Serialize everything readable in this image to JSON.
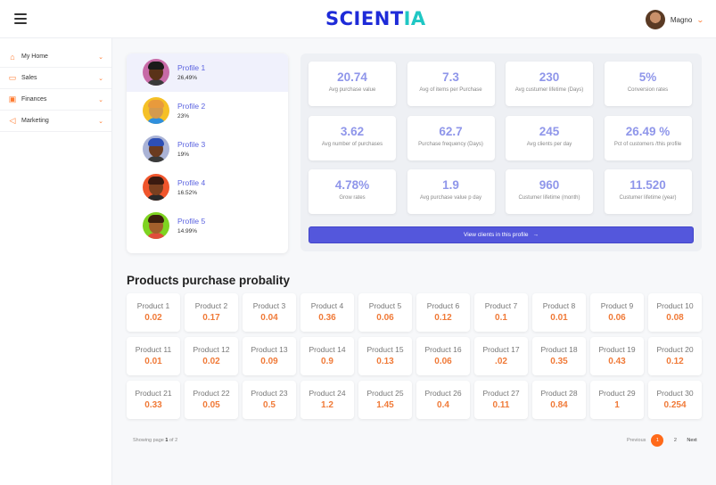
{
  "header": {
    "logo_part1": "SCIENT",
    "logo_part2": "IA",
    "user_name": "Magno"
  },
  "sidebar": {
    "items": [
      {
        "label": "My Home",
        "icon": "home-icon"
      },
      {
        "label": "Sales",
        "icon": "sales-icon"
      },
      {
        "label": "Finances",
        "icon": "finances-icon"
      },
      {
        "label": "Marketing",
        "icon": "megaphone-icon"
      }
    ]
  },
  "profiles": [
    {
      "name": "Profile 1",
      "pct": "26,49%",
      "bg": "#c76aa7",
      "skin": "#5a3218",
      "hair": "#1a1a1a",
      "shirt": "#3a3a3a"
    },
    {
      "name": "Profile 2",
      "pct": "23%",
      "bg": "#f5c026",
      "skin": "#d49a4e",
      "hair": "#e89a3c",
      "shirt": "#2f8fdd"
    },
    {
      "name": "Profile 3",
      "pct": "19%",
      "bg": "#aab3d6",
      "skin": "#6b3b1f",
      "hair": "#2d4fb5",
      "shirt": "#3a3a3a"
    },
    {
      "name": "Profile 4",
      "pct": "16.52%",
      "bg": "#f0552c",
      "skin": "#7a4020",
      "hair": "#3a1a10",
      "shirt": "#2a2a2a"
    },
    {
      "name": "Profile 5",
      "pct": "14.99%",
      "bg": "#7ed321",
      "skin": "#a3602c",
      "hair": "#3b1f0e",
      "shirt": "#e04d3b"
    }
  ],
  "stats": [
    {
      "value": "20.74",
      "label": "Avg purchase value"
    },
    {
      "value": "7.3",
      "label": "Avg of items per Purchase"
    },
    {
      "value": "230",
      "label": "Avg custumer lifetime (Days)"
    },
    {
      "value": "5%",
      "label": "Conversion rates"
    },
    {
      "value": "3.62",
      "label": "Avg number of purchases"
    },
    {
      "value": "62.7",
      "label": "Purchase frequency (Days)"
    },
    {
      "value": "245",
      "label": "Avg clients per day"
    },
    {
      "value": "26.49 %",
      "label": "Pct of customers /this profile"
    },
    {
      "value": "4.78%",
      "label": "Grow rates"
    },
    {
      "value": "1.9",
      "label": "Avg purchase value  p day"
    },
    {
      "value": "960",
      "label": "Custumer lifetime (month)"
    },
    {
      "value": "11.520",
      "label": "Custumer lifetime (year)"
    }
  ],
  "view_button": "View clients in this profile",
  "products_title": "Products purchase probality",
  "products": [
    {
      "name": "Product 1",
      "value": "0.02"
    },
    {
      "name": "Product 2",
      "value": "0.17"
    },
    {
      "name": "Product 3",
      "value": "0.04"
    },
    {
      "name": "Product 4",
      "value": "0.36"
    },
    {
      "name": "Product 5",
      "value": "0.06"
    },
    {
      "name": "Product 6",
      "value": "0.12"
    },
    {
      "name": "Product 7",
      "value": "0.1"
    },
    {
      "name": "Product 8",
      "value": "0.01"
    },
    {
      "name": "Product 9",
      "value": "0.06"
    },
    {
      "name": "Product 10",
      "value": "0.08"
    },
    {
      "name": "Product 11",
      "value": "0.01"
    },
    {
      "name": "Product 12",
      "value": "0.02"
    },
    {
      "name": "Product 13",
      "value": "0.09"
    },
    {
      "name": "Product 14",
      "value": "0.9"
    },
    {
      "name": "Product 15",
      "value": "0.13"
    },
    {
      "name": "Product 16",
      "value": "0.06"
    },
    {
      "name": "Product 17",
      "value": ".02"
    },
    {
      "name": "Product 18",
      "value": "0.35"
    },
    {
      "name": "Product 19",
      "value": "0.43"
    },
    {
      "name": "Product 20",
      "value": "0.12"
    },
    {
      "name": "Product 21",
      "value": "0.33"
    },
    {
      "name": "Product 22",
      "value": "0.05"
    },
    {
      "name": "Product 23",
      "value": "0.5"
    },
    {
      "name": "Product 24",
      "value": "1.2"
    },
    {
      "name": "Product 25",
      "value": "1.45"
    },
    {
      "name": "Product 26",
      "value": "0.4"
    },
    {
      "name": "Product 27",
      "value": "0.11"
    },
    {
      "name": "Product 28",
      "value": "0.84"
    },
    {
      "name": "Product 29",
      "value": "1"
    },
    {
      "name": "Product 30",
      "value": "0.254"
    }
  ],
  "footer": {
    "showing_prefix": "Showing page",
    "current_page": "1",
    "of_word": "of",
    "total_pages": "2",
    "prev": "Previous",
    "pages": [
      "1",
      "2"
    ],
    "next": "Next"
  }
}
